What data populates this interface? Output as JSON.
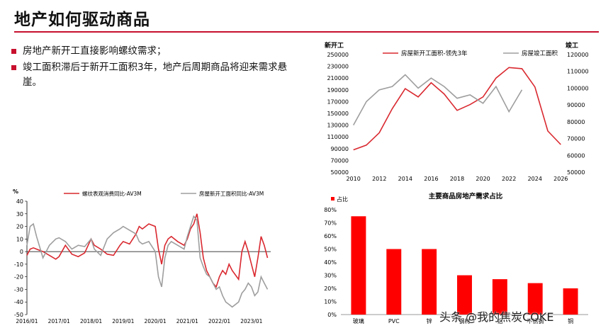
{
  "slide": {
    "title": "地产如何驱动商品",
    "bullets": [
      "房地产新开工直接影响螺纹需求；",
      "竣工面积滞后于新开工面积3年，地产后周期商品将迎来需求悬崖。"
    ],
    "watermark": "头条 @我的焦炭COKE",
    "accent": "#c8102e"
  },
  "chart_data": [
    {
      "type": "line",
      "ylabel_left": "新开工",
      "ylabel_right": "竣工",
      "x_ticks": [
        "2010",
        "2012",
        "2014",
        "2016",
        "2018",
        "2020",
        "2022",
        "2024",
        "2026"
      ],
      "xlim": [
        2009.8,
        2026.2
      ],
      "ylim_left": [
        50000,
        250000
      ],
      "yticks_left": [
        "250000",
        "230000",
        "210000",
        "190000",
        "170000",
        "150000",
        "130000",
        "110000",
        "90000",
        "70000",
        "50000"
      ],
      "ylim_right": [
        50000,
        120000
      ],
      "yticks_right": [
        "120000",
        "110000",
        "100000",
        "90000",
        "80000",
        "70000",
        "60000",
        "50000"
      ],
      "grid": false,
      "legend": "top",
      "series": [
        {
          "name": "房屋新开工面积-领先3年",
          "color": "#d9282f",
          "axis": "left",
          "x": [
            2010,
            2011,
            2012,
            2013,
            2014,
            2015,
            2016,
            2017,
            2018,
            2019,
            2020,
            2021,
            2022,
            2023,
            2024,
            2025,
            2026
          ],
          "y": [
            88000,
            96000,
            117000,
            158000,
            192000,
            178000,
            202000,
            183000,
            155000,
            165000,
            178000,
            210000,
            228000,
            226000,
            195000,
            120000,
            97000
          ]
        },
        {
          "name": "房屋竣工面积",
          "color": "#9e9e9e",
          "axis": "right",
          "x": [
            2010,
            2011,
            2012,
            2013,
            2014,
            2015,
            2016,
            2017,
            2018,
            2019,
            2020,
            2021,
            2022,
            2023
          ],
          "y": [
            78000,
            92000,
            99000,
            101000,
            108000,
            100000,
            106000,
            101000,
            94000,
            96000,
            91000,
            101000,
            86000,
            99000
          ]
        }
      ]
    },
    {
      "type": "line",
      "ylabel": "%",
      "ylim": [
        -50,
        40
      ],
      "yticks": [
        "40",
        "30",
        "20",
        "10",
        "0",
        "-10",
        "-20",
        "-30",
        "-40",
        "-50"
      ],
      "x_ticks": [
        "2016/01",
        "2017/01",
        "2018/01",
        "2019/01",
        "2020/01",
        "2021/01",
        "2022/01",
        "2023/01"
      ],
      "xlim": [
        2016.0,
        2023.6
      ],
      "grid": false,
      "legend": "top",
      "series": [
        {
          "name": "螺纹表观消费同比-AV3M",
          "color": "#d9282f",
          "x": [
            2016.0,
            2016.1,
            2016.2,
            2016.3,
            2016.5,
            2016.7,
            2016.9,
            2017.0,
            2017.2,
            2017.4,
            2017.6,
            2017.8,
            2018.0,
            2018.1,
            2018.3,
            2018.5,
            2018.7,
            2018.9,
            2019.0,
            2019.2,
            2019.4,
            2019.5,
            2019.6,
            2019.8,
            2020.0,
            2020.1,
            2020.2,
            2020.3,
            2020.4,
            2020.5,
            2020.7,
            2020.9,
            2021.0,
            2021.1,
            2021.2,
            2021.3,
            2021.4,
            2021.5,
            2021.6,
            2021.7,
            2021.8,
            2021.9,
            2022.0,
            2022.1,
            2022.2,
            2022.3,
            2022.4,
            2022.6,
            2022.7,
            2022.8,
            2022.9,
            2023.0,
            2023.1,
            2023.2,
            2023.3,
            2023.4,
            2023.5
          ],
          "y": [
            -3,
            2,
            3,
            2,
            0,
            -3,
            -6,
            -4,
            5,
            -2,
            -4,
            -1,
            10,
            5,
            2,
            -2,
            -3,
            5,
            8,
            6,
            14,
            20,
            18,
            22,
            20,
            2,
            -10,
            5,
            10,
            12,
            8,
            5,
            10,
            18,
            22,
            30,
            15,
            -5,
            -15,
            -20,
            -25,
            -28,
            -20,
            -15,
            -18,
            -10,
            -15,
            -22,
            0,
            8,
            0,
            -10,
            -20,
            -5,
            12,
            5,
            -5
          ]
        },
        {
          "name": "房屋新开工面积同比-AV3M",
          "color": "#9e9e9e",
          "x": [
            2016.0,
            2016.1,
            2016.2,
            2016.3,
            2016.5,
            2016.7,
            2016.9,
            2017.0,
            2017.2,
            2017.4,
            2017.6,
            2017.8,
            2018.0,
            2018.1,
            2018.3,
            2018.5,
            2018.7,
            2018.9,
            2019.0,
            2019.2,
            2019.4,
            2019.5,
            2019.6,
            2019.8,
            2020.0,
            2020.1,
            2020.2,
            2020.3,
            2020.4,
            2020.5,
            2020.7,
            2020.9,
            2021.0,
            2021.1,
            2021.2,
            2021.3,
            2021.4,
            2021.5,
            2021.6,
            2021.7,
            2021.8,
            2021.9,
            2022.0,
            2022.1,
            2022.2,
            2022.3,
            2022.4,
            2022.6,
            2022.7,
            2022.8,
            2022.9,
            2023.0,
            2023.1,
            2023.2,
            2023.3,
            2023.4,
            2023.5
          ],
          "y": [
            5,
            20,
            22,
            12,
            -5,
            5,
            10,
            11,
            8,
            2,
            5,
            4,
            10,
            2,
            -3,
            10,
            15,
            18,
            20,
            17,
            14,
            8,
            6,
            8,
            0,
            -20,
            -28,
            -5,
            5,
            8,
            5,
            2,
            12,
            20,
            28,
            25,
            -5,
            -12,
            -18,
            -20,
            -25,
            -30,
            -28,
            -35,
            -40,
            -42,
            -44,
            -40,
            -33,
            -30,
            -25,
            -28,
            -35,
            -32,
            -20,
            -25,
            -30
          ]
        }
      ]
    },
    {
      "type": "bar",
      "title": "主要商品房地产需求占比",
      "legend": "top-left",
      "series": [
        {
          "name": "占比",
          "color": "#ff0000",
          "values": [
            75,
            50,
            50,
            30,
            27,
            24,
            20
          ]
        }
      ],
      "categories": [
        "玻璃",
        "PVC",
        "锌",
        "钢材",
        "铝",
        "不锈钢",
        "铜"
      ],
      "ylim": [
        0,
        80
      ],
      "yticks": [
        "80%",
        "70%",
        "60%",
        "50%",
        "40%",
        "30%",
        "20%",
        "10%",
        "0%"
      ]
    }
  ]
}
